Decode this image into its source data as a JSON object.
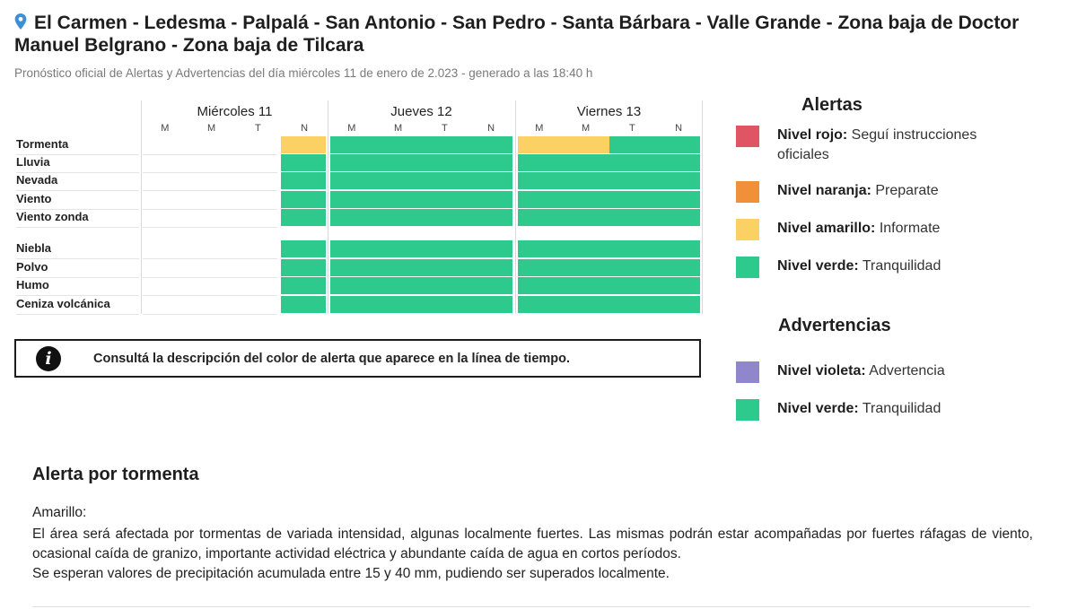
{
  "header": {
    "title": "El Carmen - Ledesma - Palpalá - San Antonio - San Pedro - Santa Bárbara - Valle Grande - Zona baja de Doctor Manuel Belgrano - Zona baja de Tilcara",
    "subtitle": "Pronóstico oficial de Alertas y Advertencias del día miércoles 11 de enero de 2.023 - generado a las 18:40 h"
  },
  "colors": {
    "rojo": "#e05563",
    "naranja": "#f0913a",
    "amarillo": "#fbd164",
    "verde": "#2ec98d",
    "violeta": "#8f86cc"
  },
  "timeline": {
    "days": [
      "Miércoles 11",
      "Jueves 12",
      "Viernes 13"
    ],
    "slots": [
      "M",
      "M",
      "T",
      "N"
    ],
    "groups": [
      {
        "rows": [
          {
            "label": "Tormenta",
            "levels": [
              "none",
              "none",
              "none",
              "amarillo",
              "verde",
              "verde",
              "verde",
              "verde",
              "amarillo",
              "amarillo",
              "verde",
              "verde"
            ]
          },
          {
            "label": "Lluvia",
            "levels": [
              "none",
              "none",
              "none",
              "verde",
              "verde",
              "verde",
              "verde",
              "verde",
              "verde",
              "verde",
              "verde",
              "verde"
            ]
          },
          {
            "label": "Nevada",
            "levels": [
              "none",
              "none",
              "none",
              "verde",
              "verde",
              "verde",
              "verde",
              "verde",
              "verde",
              "verde",
              "verde",
              "verde"
            ]
          },
          {
            "label": "Viento",
            "levels": [
              "none",
              "none",
              "none",
              "verde",
              "verde",
              "verde",
              "verde",
              "verde",
              "verde",
              "verde",
              "verde",
              "verde"
            ]
          },
          {
            "label": "Viento zonda",
            "levels": [
              "none",
              "none",
              "none",
              "verde",
              "verde",
              "verde",
              "verde",
              "verde",
              "verde",
              "verde",
              "verde",
              "verde"
            ]
          }
        ]
      },
      {
        "rows": [
          {
            "label": "Niebla",
            "levels": [
              "none",
              "none",
              "none",
              "verde",
              "verde",
              "verde",
              "verde",
              "verde",
              "verde",
              "verde",
              "verde",
              "verde"
            ]
          },
          {
            "label": "Polvo",
            "levels": [
              "none",
              "none",
              "none",
              "verde",
              "verde",
              "verde",
              "verde",
              "verde",
              "verde",
              "verde",
              "verde",
              "verde"
            ]
          },
          {
            "label": "Humo",
            "levels": [
              "none",
              "none",
              "none",
              "verde",
              "verde",
              "verde",
              "verde",
              "verde",
              "verde",
              "verde",
              "verde",
              "verde"
            ]
          },
          {
            "label": "Ceniza volcánica",
            "levels": [
              "none",
              "none",
              "none",
              "verde",
              "verde",
              "verde",
              "verde",
              "verde",
              "verde",
              "verde",
              "verde",
              "verde"
            ]
          }
        ]
      }
    ]
  },
  "info_box": {
    "icon": "info-icon",
    "text": "Consultá la descripción del color de alerta que aparece en la línea de tiempo."
  },
  "legend": {
    "alertas_title": "Alertas",
    "alertas": [
      {
        "level": "rojo",
        "name": "Nivel rojo:",
        "desc": "Seguí instrucciones oficiales"
      },
      {
        "level": "naranja",
        "name": "Nivel naranja:",
        "desc": "Preparate"
      },
      {
        "level": "amarillo",
        "name": "Nivel amarillo:",
        "desc": "Informate"
      },
      {
        "level": "verde",
        "name": "Nivel verde:",
        "desc": "Tranquilidad"
      }
    ],
    "advertencias_title": "Advertencias",
    "advertencias": [
      {
        "level": "violeta",
        "name": "Nivel violeta:",
        "desc": "Advertencia"
      },
      {
        "level": "verde",
        "name": "Nivel verde:",
        "desc": "Tranquilidad"
      }
    ]
  },
  "description": {
    "title": "Alerta por tormenta",
    "level_label": "Amarillo:",
    "body": "El área será afectada por tormentas de variada intensidad, algunas localmente fuertes. Las mismas podrán estar acompañadas por fuertes ráfagas de viento, ocasional caída de granizo, importante actividad eléctrica y abundante caída de agua en cortos períodos.",
    "precip": "Se esperan valores de precipitación acumulada entre 15 y 40 mm, pudiendo ser superados localmente."
  }
}
